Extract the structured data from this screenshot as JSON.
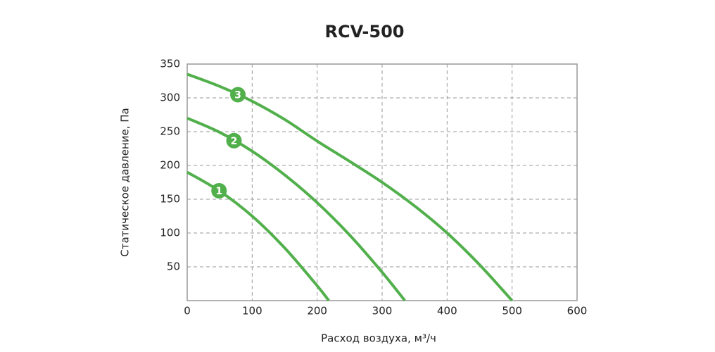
{
  "chart_data": {
    "type": "line",
    "title": "RCV-500",
    "xlabel": "Расход воздуха, м³/ч",
    "ylabel": "Статическое давление, Па",
    "xlim": [
      0,
      600
    ],
    "ylim": [
      0,
      350
    ],
    "xticks": [
      0,
      100,
      200,
      300,
      400,
      500,
      600
    ],
    "yticks": [
      50,
      100,
      150,
      200,
      250,
      300,
      350
    ],
    "grid": true,
    "series": [
      {
        "name": "1",
        "color": "#52b04c",
        "x": [
          0,
          50,
          100,
          150,
          200,
          218
        ],
        "values": [
          190,
          162,
          125,
          78,
          22,
          0
        ]
      },
      {
        "name": "2",
        "color": "#52b04c",
        "x": [
          0,
          50,
          100,
          150,
          200,
          250,
          300,
          335
        ],
        "values": [
          270,
          249,
          221,
          186,
          145,
          97,
          42,
          0
        ]
      },
      {
        "name": "3",
        "color": "#52b04c",
        "x": [
          0,
          50,
          100,
          150,
          200,
          250,
          300,
          350,
          400,
          450,
          500
        ],
        "values": [
          335,
          317,
          295,
          268,
          236,
          206,
          175,
          140,
          100,
          53,
          0
        ]
      }
    ]
  }
}
